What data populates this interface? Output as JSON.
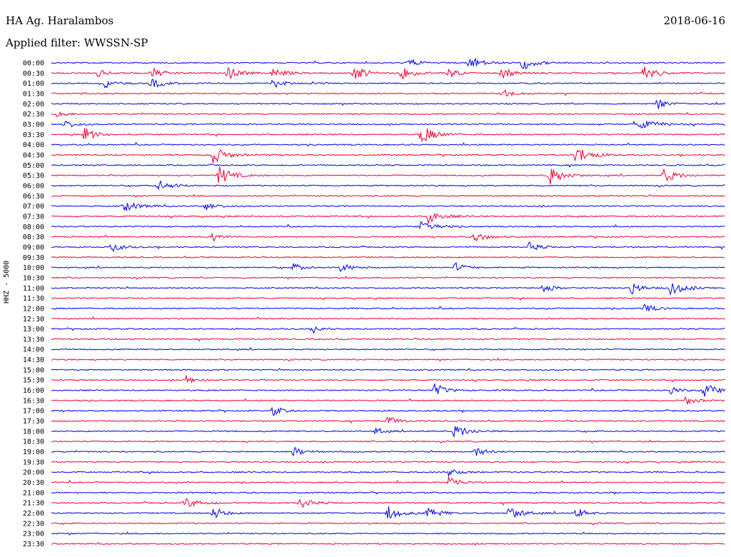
{
  "header": {
    "station": "HA Ag. Haralambos",
    "date": "2018-06-16",
    "filter": "Applied filter: WWSSN-SP"
  },
  "channel_label": "HHZ - 5000",
  "colors": {
    "even_trace": "#0000ee",
    "odd_trace": "#ee0033"
  },
  "chart_data": {
    "type": "line",
    "title": "HA Ag. Haralambos",
    "subtitle": "Applied filter: WWSSN-SP",
    "ylabel": "HHZ - 5000",
    "row_labels": [
      "00:00",
      "00:30",
      "01:00",
      "01:30",
      "02:00",
      "02:30",
      "03:00",
      "03:30",
      "04:00",
      "04:30",
      "05:00",
      "05:30",
      "06:00",
      "06:30",
      "07:00",
      "07:30",
      "08:00",
      "08:30",
      "09:00",
      "09:30",
      "10:00",
      "10:30",
      "11:00",
      "11:30",
      "12:00",
      "12:30",
      "13:00",
      "13:30",
      "14:00",
      "14:30",
      "15:00",
      "15:30",
      "16:00",
      "16:30",
      "17:00",
      "17:30",
      "18:00",
      "18:30",
      "19:00",
      "19:30",
      "20:00",
      "20:30",
      "21:00",
      "21:30",
      "22:00",
      "22:30",
      "23:00",
      "23:30"
    ],
    "events": [
      [
        0,
        0.53,
        2,
        4
      ],
      [
        0,
        0.62,
        3,
        5
      ],
      [
        0,
        0.7,
        3,
        5
      ],
      [
        1,
        0.07,
        2,
        3
      ],
      [
        1,
        0.15,
        2,
        5
      ],
      [
        1,
        0.26,
        3,
        5
      ],
      [
        1,
        0.33,
        2,
        5
      ],
      [
        1,
        0.45,
        3,
        5
      ],
      [
        1,
        0.52,
        3,
        5
      ],
      [
        1,
        0.59,
        2,
        4
      ],
      [
        1,
        0.67,
        2,
        5
      ],
      [
        1,
        0.88,
        3,
        5
      ],
      [
        2,
        0.08,
        2,
        4
      ],
      [
        2,
        0.15,
        2,
        5
      ],
      [
        2,
        0.33,
        2,
        4
      ],
      [
        3,
        0.67,
        2,
        4
      ],
      [
        4,
        0.9,
        2,
        4
      ],
      [
        5,
        0.01,
        2,
        3
      ],
      [
        6,
        0.02,
        2,
        4
      ],
      [
        6,
        0.87,
        2,
        8
      ],
      [
        7,
        0.05,
        3,
        4
      ],
      [
        7,
        0.55,
        4,
        5
      ],
      [
        9,
        0.24,
        4,
        5
      ],
      [
        9,
        0.78,
        4,
        5
      ],
      [
        11,
        0.25,
        4,
        5
      ],
      [
        11,
        0.74,
        4,
        5
      ],
      [
        11,
        0.91,
        3,
        5
      ],
      [
        12,
        0.16,
        2,
        5
      ],
      [
        14,
        0.11,
        2,
        6
      ],
      [
        14,
        0.23,
        2,
        4
      ],
      [
        15,
        0.56,
        3,
        5
      ],
      [
        16,
        0.55,
        3,
        5
      ],
      [
        17,
        0.24,
        2,
        3
      ],
      [
        17,
        0.63,
        2,
        5
      ],
      [
        18,
        0.09,
        2,
        4
      ],
      [
        18,
        0.71,
        2,
        4
      ],
      [
        20,
        0.36,
        2,
        3
      ],
      [
        20,
        0.43,
        2,
        4
      ],
      [
        20,
        0.6,
        2,
        4
      ],
      [
        22,
        0.73,
        2,
        4
      ],
      [
        22,
        0.86,
        3,
        4
      ],
      [
        22,
        0.92,
        3,
        5
      ],
      [
        24,
        0.88,
        2,
        4
      ],
      [
        26,
        0.39,
        2,
        3
      ],
      [
        31,
        0.2,
        2,
        3
      ],
      [
        32,
        0.57,
        3,
        4
      ],
      [
        32,
        0.92,
        2,
        3
      ],
      [
        32,
        0.97,
        3,
        5
      ],
      [
        33,
        0.94,
        2,
        4
      ],
      [
        34,
        0.33,
        2,
        4
      ],
      [
        35,
        0.5,
        2,
        4
      ],
      [
        36,
        0.48,
        2,
        3
      ],
      [
        36,
        0.6,
        3,
        5
      ],
      [
        38,
        0.36,
        2,
        4
      ],
      [
        38,
        0.63,
        2,
        4
      ],
      [
        40,
        0.59,
        2,
        4
      ],
      [
        41,
        0.59,
        3,
        4
      ],
      [
        43,
        0.2,
        2,
        6
      ],
      [
        43,
        0.37,
        2,
        5
      ],
      [
        44,
        0.24,
        3,
        4
      ],
      [
        44,
        0.5,
        3,
        5
      ],
      [
        44,
        0.56,
        2,
        5
      ],
      [
        44,
        0.68,
        3,
        5
      ],
      [
        44,
        0.78,
        2,
        4
      ]
    ]
  }
}
